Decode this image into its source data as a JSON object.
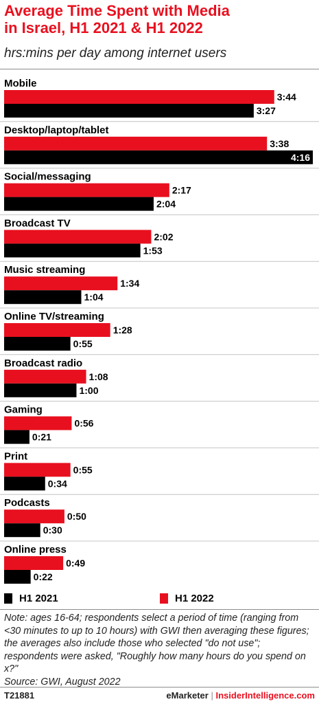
{
  "header": {
    "title_line1": "Average Time Spent with Media",
    "title_line2": "in Israel, H1 2021 & H1 2022",
    "subtitle": "hrs:mins per day among internet users"
  },
  "colors": {
    "h1_2022": "#e8101f",
    "h1_2021": "#000000",
    "accent": "#e8101f"
  },
  "chart_data": {
    "type": "bar",
    "orientation": "horizontal",
    "unit": "hrs:mins per day",
    "categories": [
      "Mobile",
      "Desktop/laptop/tablet",
      "Social/messaging",
      "Broadcast TV",
      "Music streaming",
      "Online TV/streaming",
      "Broadcast radio",
      "Gaming",
      "Print",
      "Podcasts",
      "Online press"
    ],
    "series": [
      {
        "name": "H1 2022",
        "color": "#e8101f",
        "values": [
          224,
          218,
          137,
          122,
          94,
          88,
          68,
          56,
          55,
          50,
          49
        ],
        "labels": [
          "3:44",
          "3:38",
          "2:17",
          "2:02",
          "1:34",
          "1:28",
          "1:08",
          "0:56",
          "0:55",
          "0:50",
          "0:49"
        ]
      },
      {
        "name": "H1 2021",
        "color": "#000000",
        "values": [
          207,
          256,
          124,
          113,
          64,
          55,
          60,
          21,
          34,
          30,
          22
        ],
        "labels": [
          "3:27",
          "4:16",
          "2:04",
          "1:53",
          "1:04",
          "0:55",
          "1:00",
          "0:21",
          "0:34",
          "0:30",
          "0:22"
        ]
      }
    ],
    "xlim": [
      0,
      256
    ],
    "legend_position": "bottom",
    "grid": false
  },
  "legend": {
    "items": [
      "H1 2021",
      "H1 2022"
    ]
  },
  "note": {
    "text": "Note: ages 16-64; respondents select a period of time (ranging from <30 minutes to up to 10 hours) with GWI then averaging these figures; the averages also include those who selected \"do not use\"; respondents were asked, \"Roughly how many hours do you spend on x?\"",
    "source": "Source:  GWI, August 2022"
  },
  "footer": {
    "id": "T21881",
    "brand": "eMarketer",
    "separator": "|",
    "site": "InsiderIntelligence.com"
  }
}
